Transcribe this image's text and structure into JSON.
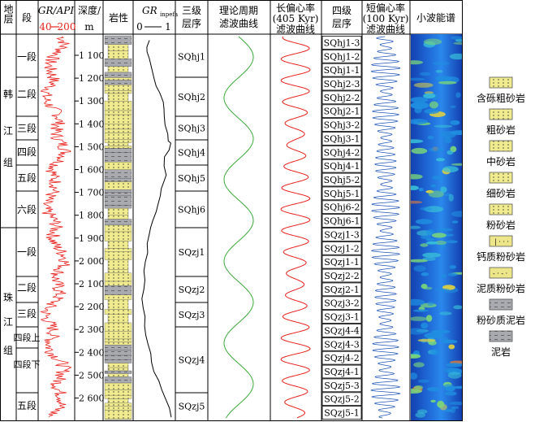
{
  "headers": {
    "formation": "地层",
    "member": "段",
    "gr_title": "GR/API",
    "gr_min": "40",
    "gr_max": "200",
    "depth": "深度/",
    "depth_unit": "m",
    "lith": "岩性",
    "grinpefa_main": "GR",
    "grinpefa_sub": "inpefa",
    "grinpefa_min": "0",
    "grinpefa_max": "1",
    "seq3": "三级",
    "seq3b": "层序",
    "theory": "理论周期",
    "theory_b": "滤波曲线",
    "long": "长偏心率",
    "long_b": "(405 Kyr)",
    "long_c": "滤波曲线",
    "seq4": "四级",
    "seq4b": "层序",
    "short": "短偏心率",
    "short_b": "(100 Kyr)",
    "short_c": "滤波曲线",
    "wavelet": "小波能谱"
  },
  "formations": [
    {
      "chars": [
        "韩",
        "江",
        "组"
      ]
    },
    {
      "chars": [
        "珠",
        "江",
        "组"
      ]
    }
  ],
  "members": [
    "一段",
    "二段",
    "三段",
    "四段",
    "五段",
    "六段",
    "一段",
    "二段",
    "三段",
    "四段上",
    "四段下",
    "五段"
  ],
  "depth_ticks": [
    "1 100",
    "1 200",
    "1 300",
    "1 400",
    "1 500",
    "1 600",
    "1 700",
    "1 800",
    "1 900",
    "2 000",
    "2 100",
    "2 200",
    "2 300",
    "2 400",
    "2 500",
    "2 600"
  ],
  "seq3": [
    "SQhj1",
    "SQhj2",
    "SQhj3",
    "SQhj4",
    "SQhj5",
    "SQhj6",
    "SQzj1",
    "SQzj2",
    "SQzj3",
    "SQzj4",
    "SQzj5"
  ],
  "seq4": [
    "SQhj1-3",
    "SQhj1-2",
    "SQhj1-1",
    "SQhj2-3",
    "SQhj2-2",
    "SQhj2-1",
    "SQhj3-2",
    "SQhj3-1",
    "SQhj4-2",
    "SQhj4-1",
    "SQhj5-2",
    "SQhj5-1",
    "SQhj6-2",
    "SQhj6-1",
    "SQzj1-3",
    "SQzj1-2",
    "SQzj1-1",
    "SQzj2-2",
    "SQzj2-1",
    "SQzj3-2",
    "SQzj3-1",
    "SQzj4-4",
    "SQzj4-3",
    "SQzj4-2",
    "SQzj4-1",
    "SQzj5-3",
    "SQzj5-2",
    "SQzj5-1"
  ],
  "legend": [
    {
      "label": "含砾粗砂岩",
      "pattern": "pebbly"
    },
    {
      "label": "粗砂岩",
      "pattern": "coarse"
    },
    {
      "label": "中砂岩",
      "pattern": "medium"
    },
    {
      "label": "细砂岩",
      "pattern": "fine"
    },
    {
      "label": "粉砂岩",
      "pattern": "silt"
    },
    {
      "label": "钙质粉砂岩",
      "pattern": "calc"
    },
    {
      "label": "泥质粉砂岩",
      "pattern": "muddysilt"
    },
    {
      "label": "粉砂质泥岩",
      "pattern": "siltymud"
    },
    {
      "label": "泥岩",
      "pattern": "mud"
    }
  ],
  "colors": {
    "gr_curve": "#e8201c",
    "grinpefa_curve": "#000000",
    "theory_curve": "#3aa839",
    "long_curve": "#e8201c",
    "short_curve": "#2156b8",
    "sand_fill": "#f0eb8e",
    "mud_fill": "#a8aab0"
  },
  "chart_data": {
    "type": "line",
    "depth_range_m": [
      1030,
      2710
    ],
    "x_axis": {
      "GR": [
        40,
        200
      ],
      "GRinpefa": [
        0,
        1
      ]
    },
    "panels": [
      "GR/API",
      "GRinpefa",
      "理论周期滤波曲线",
      "长偏心率(405 Kyr)滤波曲线",
      "短偏心率(100 Kyr)滤波曲线",
      "小波能谱"
    ],
    "grinpefa_points": [
      [
        1050,
        0.3
      ],
      [
        1080,
        0.25
      ],
      [
        1100,
        0.22
      ],
      [
        1130,
        0.3
      ],
      [
        1160,
        0.35
      ],
      [
        1190,
        0.38
      ],
      [
        1220,
        0.5
      ],
      [
        1250,
        0.55
      ],
      [
        1280,
        0.62
      ],
      [
        1320,
        0.7
      ],
      [
        1350,
        0.72
      ],
      [
        1380,
        0.78
      ],
      [
        1420,
        0.82
      ],
      [
        1460,
        0.85
      ],
      [
        1490,
        0.9
      ],
      [
        1500,
        0.95
      ],
      [
        1530,
        0.88
      ],
      [
        1560,
        0.8
      ],
      [
        1600,
        0.78
      ],
      [
        1640,
        0.8
      ],
      [
        1680,
        0.75
      ],
      [
        1700,
        0.7
      ],
      [
        1730,
        0.62
      ],
      [
        1770,
        0.55
      ],
      [
        1800,
        0.5
      ],
      [
        1840,
        0.42
      ],
      [
        1870,
        0.35
      ],
      [
        1900,
        0.3
      ],
      [
        1940,
        0.28
      ],
      [
        1980,
        0.25
      ],
      [
        2020,
        0.22
      ],
      [
        2060,
        0.18
      ],
      [
        2100,
        0.16
      ],
      [
        2140,
        0.14
      ],
      [
        2180,
        0.13
      ],
      [
        2220,
        0.15
      ],
      [
        2260,
        0.18
      ],
      [
        2300,
        0.2
      ],
      [
        2340,
        0.22
      ],
      [
        2380,
        0.28
      ],
      [
        2420,
        0.33
      ],
      [
        2460,
        0.38
      ],
      [
        2500,
        0.45
      ],
      [
        2540,
        0.58
      ],
      [
        2580,
        0.7
      ],
      [
        2620,
        0.82
      ],
      [
        2660,
        0.95
      ],
      [
        2700,
        1.0
      ]
    ]
  }
}
